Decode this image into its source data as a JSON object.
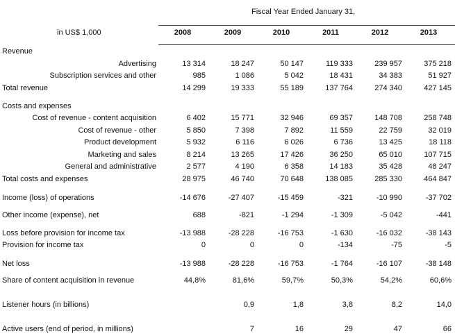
{
  "header": {
    "title": "Fiscal Year Ended January 31,",
    "unit_label": "in US$ 1,000",
    "years": [
      "2008",
      "2009",
      "2010",
      "2011",
      "2012",
      "2013"
    ]
  },
  "rows": [
    {
      "label": "Revenue",
      "type": "section",
      "values": []
    },
    {
      "label": "Advertising",
      "type": "sub",
      "values": [
        "13 314",
        "18 247",
        "50 147",
        "119 333",
        "239 957",
        "375 218"
      ]
    },
    {
      "label": "Subscription services and other",
      "type": "sub",
      "values": [
        "985",
        "1 086",
        "5 042",
        "18 431",
        "34 383",
        "51 927"
      ]
    },
    {
      "label": "Total revenue",
      "type": "main",
      "values": [
        "14 299",
        "19 333",
        "55 189",
        "137 764",
        "274 340",
        "427 145"
      ]
    },
    {
      "label": "Costs and expenses",
      "type": "section",
      "values": []
    },
    {
      "label": "Cost of revenue - content acquisition",
      "type": "sub",
      "values": [
        "6 402",
        "15 771",
        "32 946",
        "69 357",
        "148 708",
        "258 748"
      ]
    },
    {
      "label": "Cost of revenue - other",
      "type": "sub",
      "values": [
        "5 850",
        "7 398",
        "7 892",
        "11 559",
        "22 759",
        "32 019"
      ]
    },
    {
      "label": "Product development",
      "type": "sub",
      "values": [
        "5 932",
        "6 116",
        "6 026",
        "6 736",
        "13 425",
        "18 118"
      ]
    },
    {
      "label": "Marketing and sales",
      "type": "sub",
      "values": [
        "8 214",
        "13 265",
        "17 426",
        "36 250",
        "65 010",
        "107 715"
      ]
    },
    {
      "label": "General and administrative",
      "type": "sub",
      "values": [
        "2 577",
        "4 190",
        "6 358",
        "14 183",
        "35 428",
        "48 247"
      ]
    },
    {
      "label": "Total costs and expenses",
      "type": "main",
      "values": [
        "28 975",
        "46 740",
        "70 648",
        "138 085",
        "285 330",
        "464 847"
      ]
    },
    {
      "label": "Income (loss) of operations",
      "type": "main",
      "values": [
        "-14 676",
        "-27 407",
        "-15 459",
        "-321",
        "-10 990",
        "-37 702"
      ]
    },
    {
      "label": "Other income (expense), net",
      "type": "main",
      "values": [
        "688",
        "-821",
        "-1 294",
        "-1 309",
        "-5 042",
        "-441"
      ]
    },
    {
      "label": "Loss before provision for income tax",
      "type": "main",
      "values": [
        "-13 988",
        "-28 228",
        "-16 753",
        "-1 630",
        "-16 032",
        "-38 143"
      ]
    },
    {
      "label": "Provision for income tax",
      "type": "main",
      "values": [
        "0",
        "0",
        "0",
        "-134",
        "-75",
        "-5"
      ]
    },
    {
      "label": "Net loss",
      "type": "main",
      "values": [
        "-13 988",
        "-28 228",
        "-16 753",
        "-1 764",
        "-16 107",
        "-38 148"
      ]
    },
    {
      "label": "Share of content acquisition in revenue",
      "type": "main",
      "values": [
        "44,8%",
        "81,6%",
        "59,7%",
        "50,3%",
        "54,2%",
        "60,6%"
      ]
    },
    {
      "label": "Listener hours (in billions)",
      "type": "main",
      "values": [
        "",
        "0,9",
        "1,8",
        "3,8",
        "8,2",
        "14,0"
      ]
    },
    {
      "label": "Active users (end of period, in millions)",
      "type": "main",
      "values": [
        "",
        "7",
        "16",
        "29",
        "47",
        "66"
      ]
    }
  ]
}
